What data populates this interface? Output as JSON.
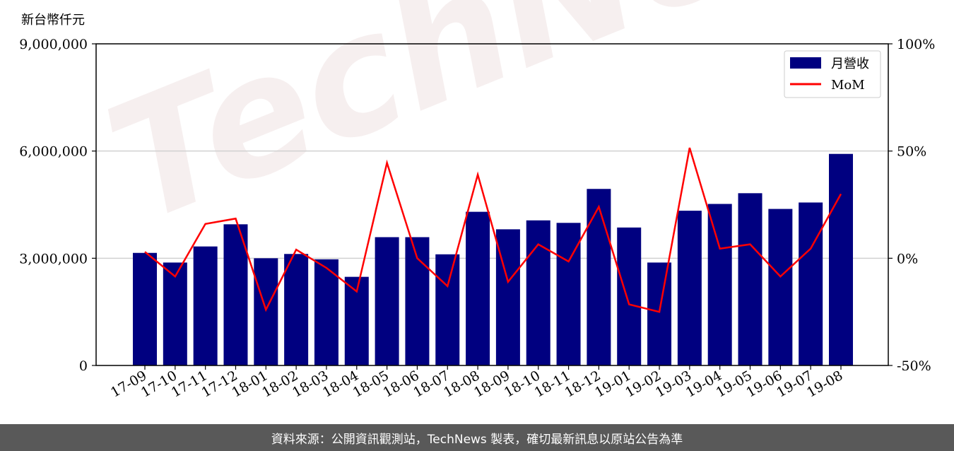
{
  "watermark": "TechNews",
  "footer": "資料來源：公開資訊觀測站，TechNews 製表，確切最新訊息以原站公告為準",
  "chart_data": {
    "type": "bar",
    "unit_label": "新台幣仟元",
    "categories": [
      "17-09",
      "17-10",
      "17-11",
      "17-12",
      "18-01",
      "18-02",
      "18-03",
      "18-04",
      "18-05",
      "18-06",
      "18-07",
      "18-08",
      "18-09",
      "18-10",
      "18-11",
      "18-12",
      "19-01",
      "19-02",
      "19-03",
      "19-04",
      "19-05",
      "19-06",
      "19-07",
      "19-08"
    ],
    "series": [
      {
        "name": "月營收",
        "kind": "bar",
        "axis": "left",
        "color": "#000080",
        "values": [
          3150000,
          2880000,
          3330000,
          3950000,
          3000000,
          3120000,
          2970000,
          2480000,
          3590000,
          3590000,
          3110000,
          4300000,
          3810000,
          4060000,
          3990000,
          4940000,
          3860000,
          2880000,
          4330000,
          4520000,
          4820000,
          4380000,
          4560000,
          5920000
        ]
      },
      {
        "name": "MoM",
        "kind": "line",
        "axis": "right",
        "color": "#ff0000",
        "values": [
          3.0,
          -8.5,
          16.0,
          18.5,
          -24.0,
          4.0,
          -4.5,
          -15.5,
          44.5,
          0,
          -13.0,
          39.0,
          -11.0,
          6.5,
          -1.5,
          24.0,
          -21.5,
          -25.0,
          51.5,
          4.5,
          6.5,
          -8.5,
          4.5,
          30.0
        ]
      }
    ],
    "y_left": {
      "min": 0,
      "max": 9000000,
      "ticks": [
        "0",
        "3,000,000",
        "6,000,000",
        "9,000,000"
      ],
      "tick_values": [
        0,
        3000000,
        6000000,
        9000000
      ]
    },
    "y_right": {
      "min": -50,
      "max": 100,
      "ticks": [
        "-50%",
        "0%",
        "50%",
        "100%"
      ],
      "tick_values": [
        -50,
        0,
        50,
        100
      ]
    },
    "grid": "horizontal",
    "legend_position": "top-right"
  }
}
